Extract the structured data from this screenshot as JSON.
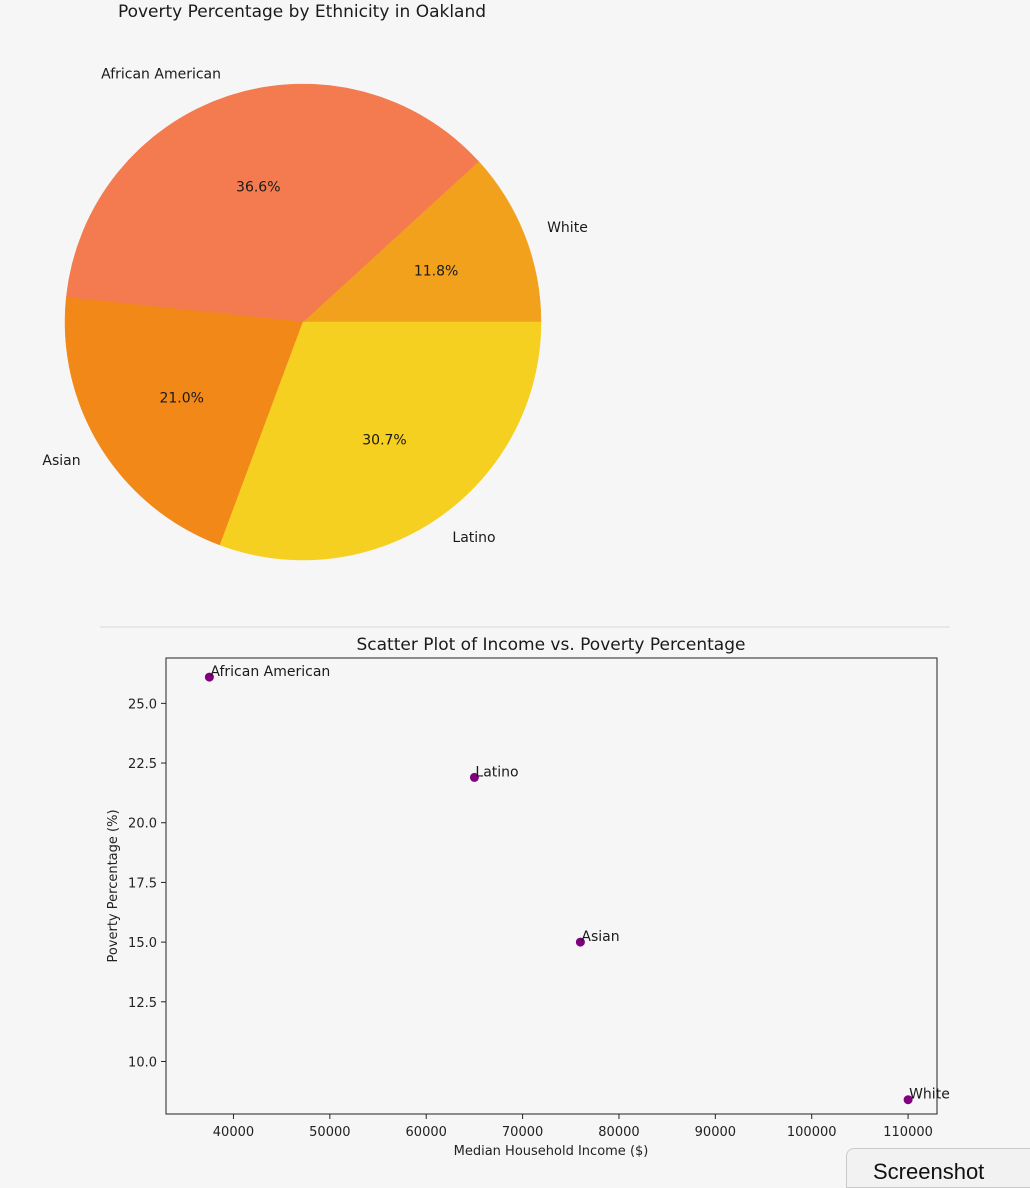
{
  "chart_data": [
    {
      "type": "pie",
      "title": "Poverty Percentage by Ethnicity in Oakland",
      "labels": [
        "White",
        "African American",
        "Asian",
        "Latino"
      ],
      "values": [
        11.8,
        36.6,
        21.0,
        30.7
      ],
      "pct_labels": [
        "11.8%",
        "36.6%",
        "21.0%",
        "30.7%"
      ],
      "colors": [
        "#f2a11d",
        "#f47b4f",
        "#f28818",
        "#f5d021"
      ],
      "start_angle_deg": 0,
      "direction": "counterclockwise"
    },
    {
      "type": "scatter",
      "title": "Scatter Plot of Income vs. Poverty Percentage",
      "xlabel": "Median Household Income ($)",
      "ylabel": "Poverty Percentage (%)",
      "xlim": [
        33000,
        113000
      ],
      "ylim": [
        7.8,
        26.9
      ],
      "xticks": [
        40000,
        50000,
        60000,
        70000,
        80000,
        90000,
        100000,
        110000
      ],
      "yticks": [
        10.0,
        12.5,
        15.0,
        17.5,
        20.0,
        22.5,
        25.0
      ],
      "ytick_labels": [
        "10.0",
        "12.5",
        "15.0",
        "17.5",
        "20.0",
        "22.5",
        "25.0"
      ],
      "marker_color": "#800080",
      "points": [
        {
          "label": "African American",
          "x": 37500,
          "y": 26.1
        },
        {
          "label": "Latino",
          "x": 65000,
          "y": 21.9
        },
        {
          "label": "Asian",
          "x": 76000,
          "y": 15.0
        },
        {
          "label": "White",
          "x": 110000,
          "y": 8.4
        }
      ],
      "grid": false
    }
  ],
  "ui": {
    "screenshot_tab": "Screenshot"
  }
}
